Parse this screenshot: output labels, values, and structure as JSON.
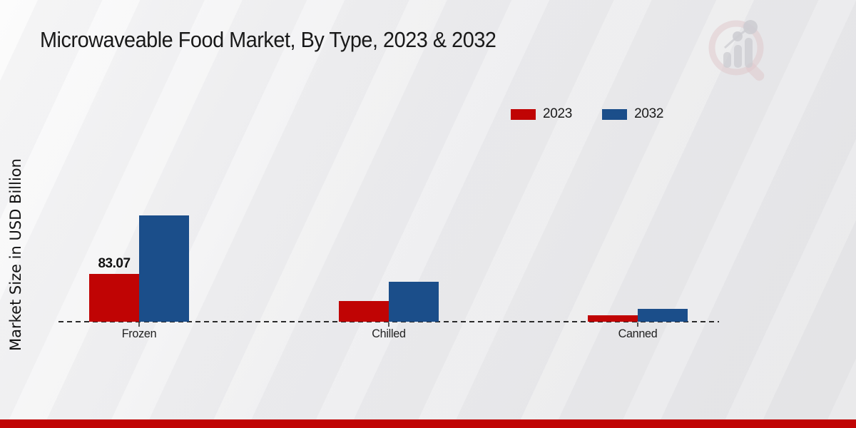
{
  "header": {
    "title": "Microwaveable Food Market, By Type, 2023 & 2032"
  },
  "colors": {
    "series_2023": "#c00404",
    "series_2032": "#1b4e8a",
    "footer_band": "#c00404",
    "baseline": "#2b2b2b",
    "background": "#ececee"
  },
  "legend": {
    "items": [
      {
        "label": "2023",
        "color": "#c00404"
      },
      {
        "label": "2032",
        "color": "#1b4e8a"
      }
    ],
    "position": "top-right"
  },
  "chart_data": {
    "type": "bar",
    "title": "Microwaveable Food Market, By Type, 2023 & 2032",
    "xlabel": "",
    "ylabel": "Market Size in USD Billion",
    "categories": [
      "Frozen",
      "Chilled",
      "Canned"
    ],
    "series": [
      {
        "name": "2023",
        "color": "#c00404",
        "values": [
          83.07,
          36.0,
          10.8
        ]
      },
      {
        "name": "2032",
        "color": "#1b4e8a",
        "values": [
          184.8,
          69.5,
          22.3
        ]
      }
    ],
    "data_labels": [
      {
        "series": "2023",
        "category": "Frozen",
        "text": "83.07"
      }
    ],
    "ylim": [
      0,
      200
    ],
    "grid": false,
    "axis_line_style": "dashed",
    "legend_position": "top-right"
  },
  "watermark": {
    "icon": "magnifier-bar-chart-logo"
  }
}
